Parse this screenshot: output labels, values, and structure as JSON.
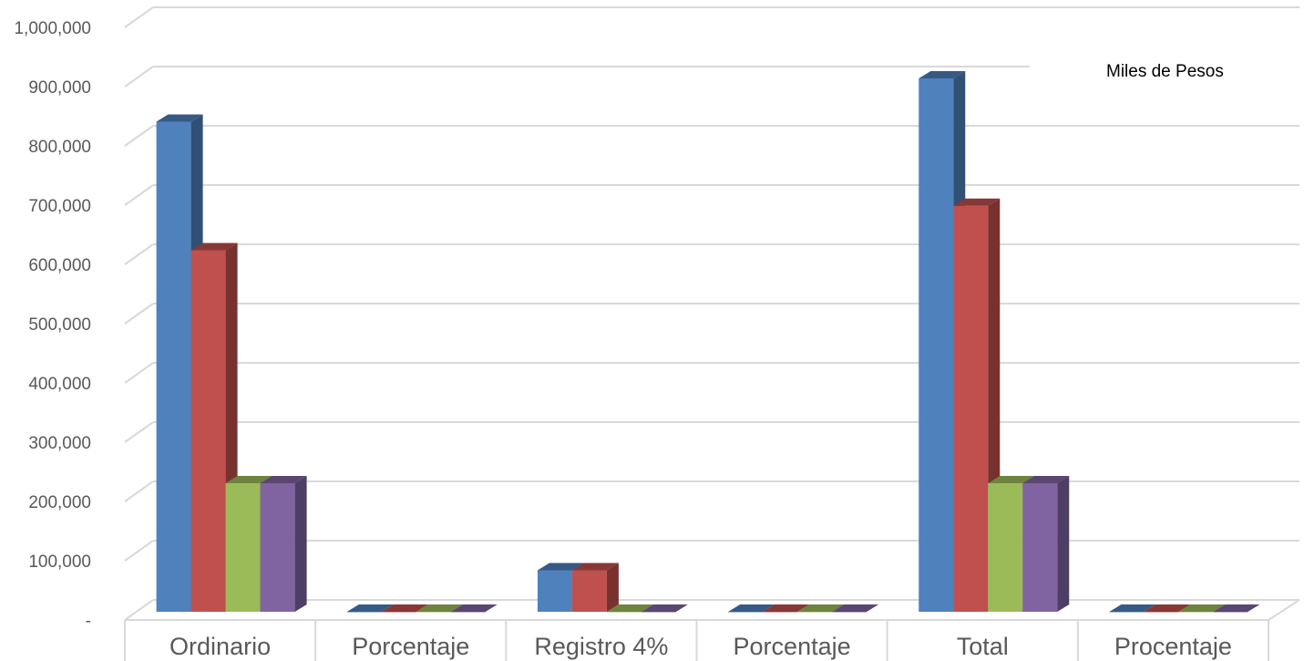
{
  "chart_data": {
    "type": "bar",
    "style": "3d-clustered-column",
    "unit_label": "Miles de Pesos",
    "categories": [
      "Ordinario",
      "Porcentaje",
      "Registro 4%",
      "Porcentaje",
      "Total",
      "Procentaje"
    ],
    "series": [
      {
        "values": [
          827000,
          0,
          70000,
          0,
          900000,
          0
        ],
        "color": "#4F81BD"
      },
      {
        "values": [
          610000,
          0,
          70000,
          0,
          685000,
          0
        ],
        "color": "#C0504D"
      },
      {
        "values": [
          217000,
          0,
          0,
          0,
          217000,
          0
        ],
        "color": "#9BBB59"
      },
      {
        "values": [
          217000,
          0,
          0,
          0,
          217000,
          0
        ],
        "color": "#8064A2"
      }
    ],
    "ylim": [
      0,
      1000000
    ],
    "yticks": [
      0,
      100000,
      200000,
      300000,
      400000,
      500000,
      600000,
      700000,
      800000,
      900000,
      1000000
    ],
    "ytick_labels": [
      "-",
      "100,000",
      "200,000",
      "300,000",
      "400,000",
      "500,000",
      "600,000",
      "700,000",
      "800,000",
      "900,000",
      "1,000,000"
    ],
    "grid": true,
    "legend": "none"
  }
}
